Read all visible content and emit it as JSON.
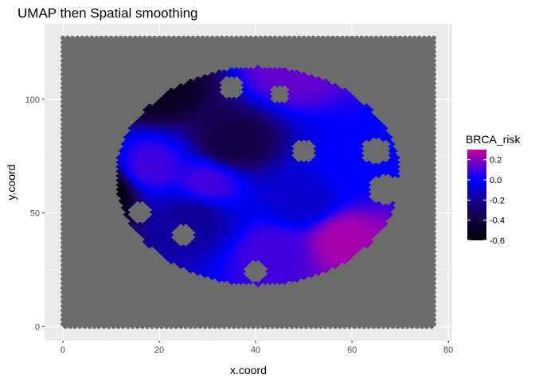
{
  "chart_data": {
    "type": "scatter",
    "title": "UMAP then Spatial smoothing",
    "xlabel": "x.coord",
    "ylabel": "y.coord",
    "xlim": [
      -3.8,
      80.8
    ],
    "ylim": [
      -6.2,
      133.2
    ],
    "xticks": [
      0,
      20,
      40,
      60,
      80
    ],
    "yticks": [
      0,
      50,
      100
    ],
    "grid": true,
    "background_points": {
      "color": "#6b6b6b",
      "x_range": [
        0,
        77
      ],
      "y_range": [
        0,
        127
      ],
      "spacing": 1
    },
    "spot_region": {
      "shape": "circle",
      "center": [
        40.5,
        66
      ],
      "radius_x": 29.5,
      "radius_y": 48,
      "x_range": [
        7,
        70
      ],
      "y_range": [
        8,
        114
      ]
    },
    "hollow_regions": [
      {
        "center": [
          67,
          60
        ],
        "radius": 3.5
      },
      {
        "center": [
          65,
          77
        ],
        "radius": 3
      },
      {
        "center": [
          50,
          77
        ],
        "radius": 2.5
      },
      {
        "center": [
          35,
          105
        ],
        "radius": 2.5
      },
      {
        "center": [
          45,
          102
        ],
        "radius": 2
      },
      {
        "center": [
          16,
          50
        ],
        "radius": 2.5
      },
      {
        "center": [
          25,
          40
        ],
        "radius": 2.5
      },
      {
        "center": [
          40,
          24
        ],
        "radius": 2.5
      }
    ],
    "color_value_hotspots": [
      {
        "x": 8,
        "y": 60,
        "value": -0.6
      },
      {
        "x": 20,
        "y": 105,
        "value": -0.5
      },
      {
        "x": 35,
        "y": 80,
        "value": -0.4
      },
      {
        "x": 27,
        "y": 48,
        "value": -0.2
      },
      {
        "x": 58,
        "y": 38,
        "value": 0.25
      },
      {
        "x": 47,
        "y": 113,
        "value": 0.15
      },
      {
        "x": 30,
        "y": 63,
        "value": 0.1
      },
      {
        "x": 44,
        "y": 32,
        "value": 0.1
      },
      {
        "x": 18,
        "y": 70,
        "value": 0.1
      },
      {
        "x": 60,
        "y": 70,
        "value": 0.0
      },
      {
        "x": 50,
        "y": 55,
        "value": -0.1
      }
    ],
    "legend": {
      "title": "BRCA_risk",
      "placement": "right",
      "range": [
        -0.6,
        0.3
      ],
      "ticks": [
        0.2,
        0.0,
        -0.2,
        -0.4,
        -0.6
      ],
      "tick_labels": [
        "0.2",
        "0.0",
        "-0.2",
        "-0.4",
        "-0.6"
      ],
      "gradient": [
        "#000000",
        "#1a0066",
        "#0000ff",
        "#c9009c"
      ]
    }
  }
}
